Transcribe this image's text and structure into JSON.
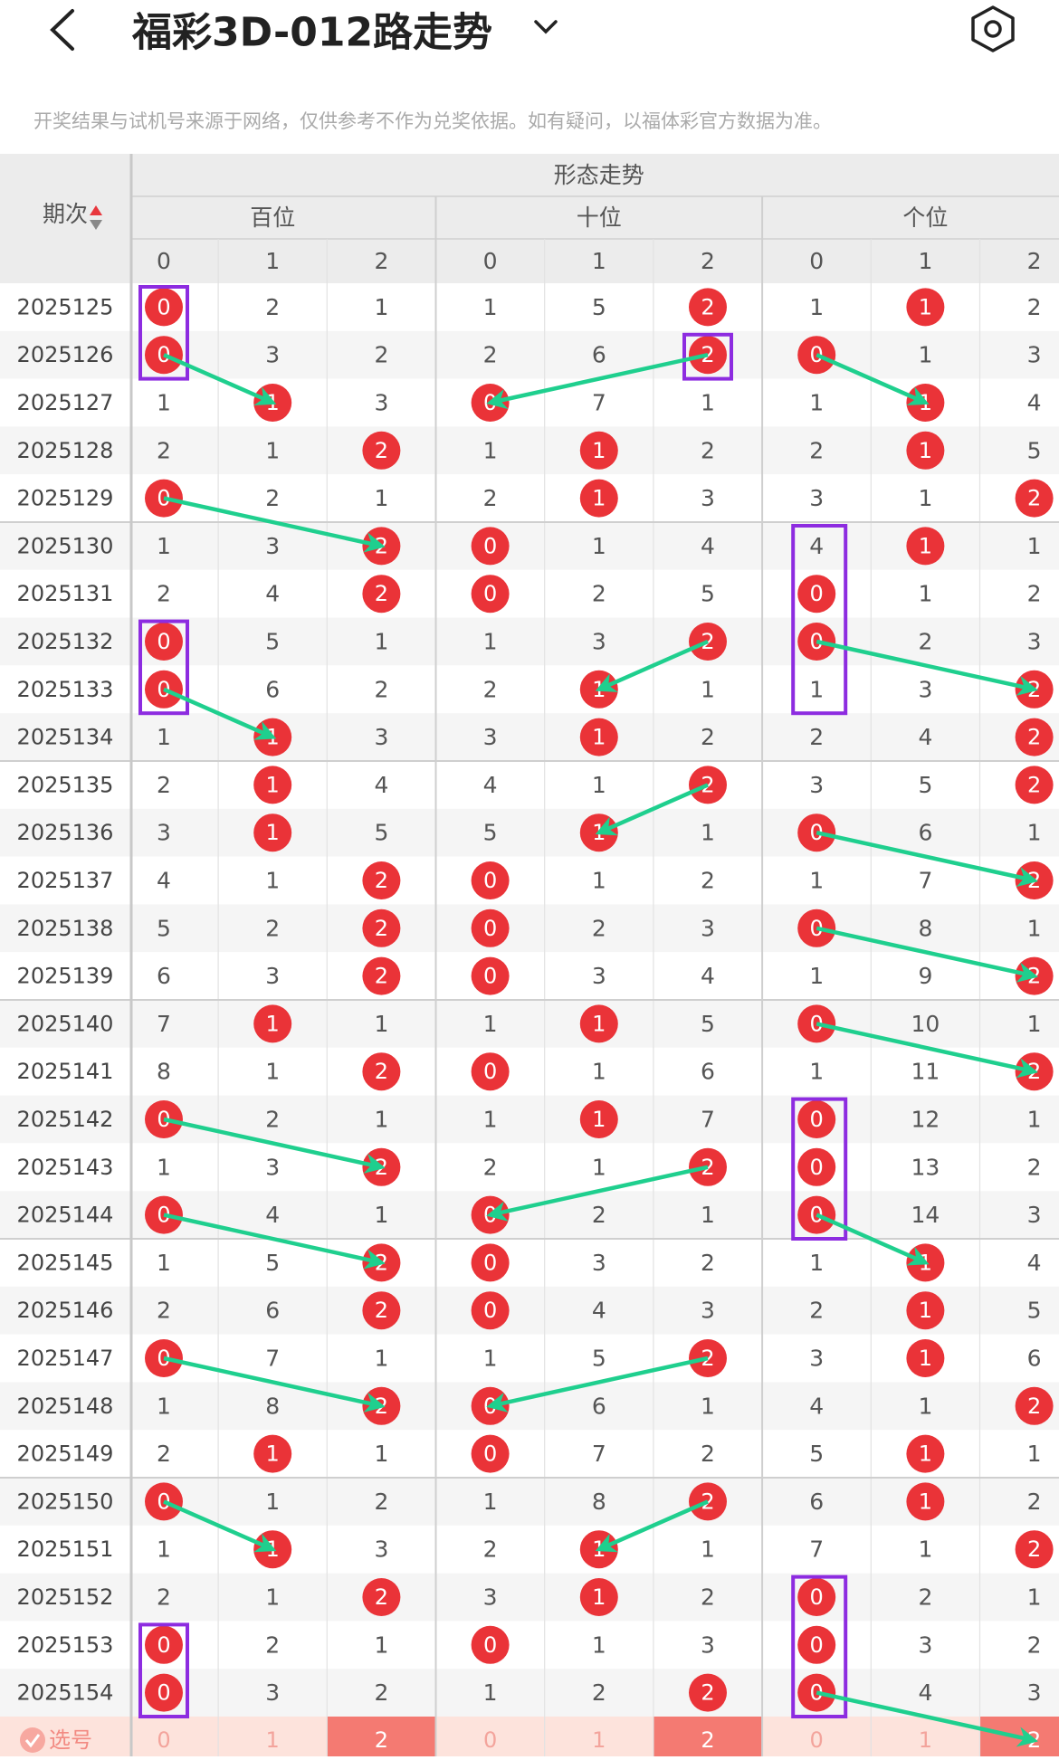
{
  "header": {
    "title": "福彩3D-012路走势"
  },
  "notice": "开奖结果与试机号来源于网络，仅供参考不作为兑奖依据。如有疑问，以福体彩官方数据为准。",
  "table": {
    "super_header": "形态走势",
    "period_label": "期次",
    "groups": [
      {
        "name": "百位",
        "digits": [
          0,
          1,
          2
        ]
      },
      {
        "name": "十位",
        "digits": [
          0,
          1,
          2
        ]
      },
      {
        "name": "个位",
        "digits": [
          0,
          1,
          2
        ]
      }
    ],
    "rows": [
      {
        "period": "2025125",
        "cells": [
          0,
          2,
          1,
          1,
          5,
          2,
          1,
          1,
          2
        ],
        "hits": [
          0,
          2,
          1
        ]
      },
      {
        "period": "2025126",
        "cells": [
          0,
          3,
          2,
          2,
          6,
          2,
          0,
          1,
          3
        ],
        "hits": [
          0,
          2,
          0
        ]
      },
      {
        "period": "2025127",
        "cells": [
          1,
          1,
          3,
          0,
          7,
          1,
          1,
          1,
          4
        ],
        "hits": [
          1,
          0,
          1
        ]
      },
      {
        "period": "2025128",
        "cells": [
          2,
          1,
          2,
          1,
          1,
          2,
          2,
          1,
          5
        ],
        "hits": [
          2,
          1,
          1
        ]
      },
      {
        "period": "2025129",
        "cells": [
          0,
          2,
          1,
          2,
          1,
          3,
          3,
          1,
          2
        ],
        "hits": [
          0,
          1,
          2
        ]
      },
      {
        "period": "2025130",
        "cells": [
          1,
          3,
          2,
          0,
          1,
          4,
          4,
          1,
          1
        ],
        "hits": [
          2,
          0,
          1
        ]
      },
      {
        "period": "2025131",
        "cells": [
          2,
          4,
          2,
          0,
          2,
          5,
          0,
          1,
          2
        ],
        "hits": [
          2,
          0,
          0
        ]
      },
      {
        "period": "2025132",
        "cells": [
          0,
          5,
          1,
          1,
          3,
          2,
          0,
          2,
          3
        ],
        "hits": [
          0,
          2,
          0
        ]
      },
      {
        "period": "2025133",
        "cells": [
          0,
          6,
          2,
          2,
          1,
          1,
          1,
          3,
          2
        ],
        "hits": [
          0,
          1,
          2
        ]
      },
      {
        "period": "2025134",
        "cells": [
          1,
          1,
          3,
          3,
          1,
          2,
          2,
          4,
          2
        ],
        "hits": [
          1,
          1,
          2
        ]
      },
      {
        "period": "2025135",
        "cells": [
          2,
          1,
          4,
          4,
          1,
          2,
          3,
          5,
          2
        ],
        "hits": [
          1,
          2,
          2
        ]
      },
      {
        "period": "2025136",
        "cells": [
          3,
          1,
          5,
          5,
          1,
          1,
          0,
          6,
          1
        ],
        "hits": [
          1,
          1,
          0
        ]
      },
      {
        "period": "2025137",
        "cells": [
          4,
          1,
          2,
          0,
          1,
          2,
          1,
          7,
          2
        ],
        "hits": [
          2,
          0,
          2
        ]
      },
      {
        "period": "2025138",
        "cells": [
          5,
          2,
          2,
          0,
          2,
          3,
          0,
          8,
          1
        ],
        "hits": [
          2,
          0,
          0
        ]
      },
      {
        "period": "2025139",
        "cells": [
          6,
          3,
          2,
          0,
          3,
          4,
          1,
          9,
          2
        ],
        "hits": [
          2,
          0,
          2
        ]
      },
      {
        "period": "2025140",
        "cells": [
          7,
          1,
          1,
          1,
          1,
          5,
          0,
          10,
          1
        ],
        "hits": [
          1,
          1,
          0
        ]
      },
      {
        "period": "2025141",
        "cells": [
          8,
          1,
          2,
          0,
          1,
          6,
          1,
          11,
          2
        ],
        "hits": [
          2,
          0,
          2
        ]
      },
      {
        "period": "2025142",
        "cells": [
          0,
          2,
          1,
          1,
          1,
          7,
          0,
          12,
          1
        ],
        "hits": [
          0,
          1,
          0
        ]
      },
      {
        "period": "2025143",
        "cells": [
          1,
          3,
          2,
          2,
          1,
          2,
          0,
          13,
          2
        ],
        "hits": [
          2,
          2,
          0
        ]
      },
      {
        "period": "2025144",
        "cells": [
          0,
          4,
          1,
          0,
          2,
          1,
          0,
          14,
          3
        ],
        "hits": [
          0,
          0,
          0
        ]
      },
      {
        "period": "2025145",
        "cells": [
          1,
          5,
          2,
          0,
          3,
          2,
          1,
          1,
          4
        ],
        "hits": [
          2,
          0,
          1
        ]
      },
      {
        "period": "2025146",
        "cells": [
          2,
          6,
          2,
          0,
          4,
          3,
          2,
          1,
          5
        ],
        "hits": [
          2,
          0,
          1
        ]
      },
      {
        "period": "2025147",
        "cells": [
          0,
          7,
          1,
          1,
          5,
          2,
          3,
          1,
          6
        ],
        "hits": [
          0,
          2,
          1
        ]
      },
      {
        "period": "2025148",
        "cells": [
          1,
          8,
          2,
          0,
          6,
          1,
          4,
          1,
          2
        ],
        "hits": [
          2,
          0,
          2
        ]
      },
      {
        "period": "2025149",
        "cells": [
          2,
          1,
          1,
          0,
          7,
          2,
          5,
          1,
          1
        ],
        "hits": [
          1,
          0,
          1
        ]
      },
      {
        "period": "2025150",
        "cells": [
          0,
          1,
          2,
          1,
          8,
          2,
          6,
          1,
          2
        ],
        "hits": [
          0,
          2,
          1
        ]
      },
      {
        "period": "2025151",
        "cells": [
          1,
          1,
          3,
          2,
          1,
          1,
          7,
          1,
          2
        ],
        "hits": [
          1,
          1,
          2
        ]
      },
      {
        "period": "2025152",
        "cells": [
          2,
          1,
          2,
          3,
          1,
          2,
          0,
          2,
          1
        ],
        "hits": [
          2,
          1,
          0
        ]
      },
      {
        "period": "2025153",
        "cells": [
          0,
          2,
          1,
          0,
          1,
          3,
          0,
          3,
          2
        ],
        "hits": [
          0,
          0,
          0
        ]
      },
      {
        "period": "2025154",
        "cells": [
          0,
          3,
          2,
          1,
          2,
          2,
          0,
          4,
          3
        ],
        "hits": [
          0,
          2,
          0
        ]
      }
    ],
    "select_row": {
      "label": "选号",
      "cells": [
        0,
        1,
        2,
        0,
        1,
        2,
        0,
        1,
        2
      ],
      "selected": [
        false,
        false,
        true,
        false,
        false,
        true,
        false,
        false,
        true
      ]
    }
  }
}
